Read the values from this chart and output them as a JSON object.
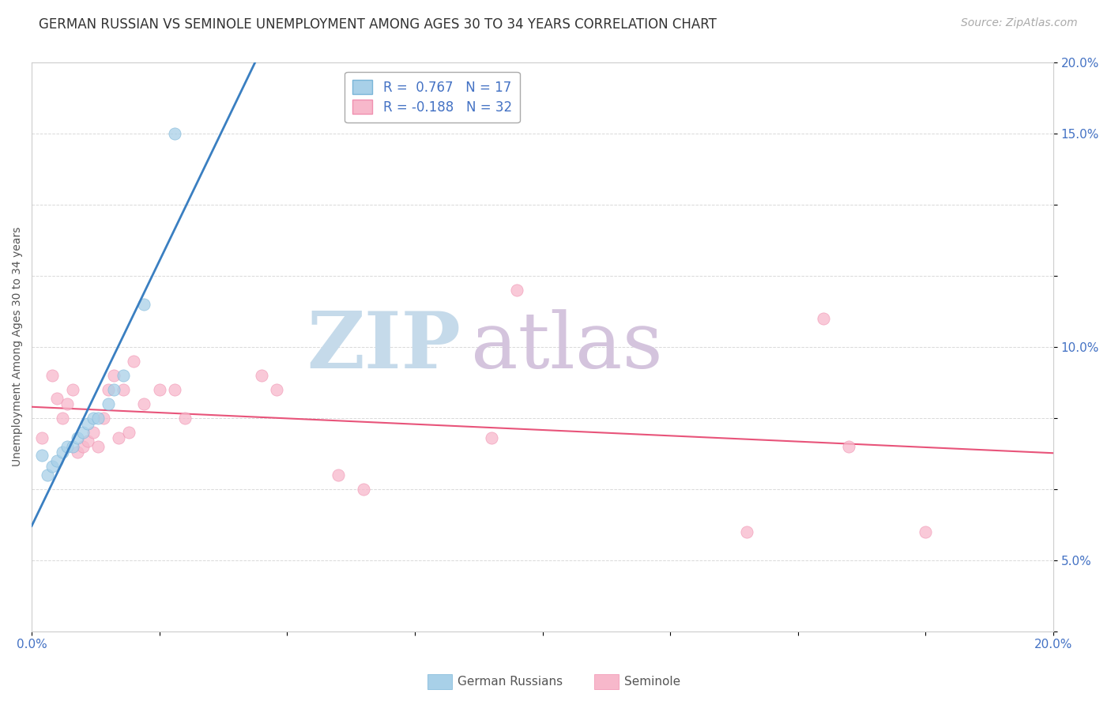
{
  "title": "GERMAN RUSSIAN VS SEMINOLE UNEMPLOYMENT AMONG AGES 30 TO 34 YEARS CORRELATION CHART",
  "source": "Source: ZipAtlas.com",
  "ylabel": "Unemployment Among Ages 30 to 34 years",
  "xlim": [
    0.0,
    0.2
  ],
  "ylim": [
    0.0,
    0.2
  ],
  "xticks": [
    0.0,
    0.025,
    0.05,
    0.075,
    0.1,
    0.125,
    0.15,
    0.175,
    0.2
  ],
  "yticks": [
    0.0,
    0.025,
    0.05,
    0.075,
    0.1,
    0.125,
    0.15,
    0.175,
    0.2
  ],
  "xtick_labels_show": [
    "0.0%",
    "20.0%"
  ],
  "ytick_labels_show": [
    "5.0%",
    "10.0%",
    "15.0%",
    "20.0%"
  ],
  "german_russian_x": [
    0.002,
    0.003,
    0.004,
    0.005,
    0.006,
    0.007,
    0.008,
    0.009,
    0.01,
    0.011,
    0.012,
    0.013,
    0.015,
    0.016,
    0.018,
    0.022,
    0.028
  ],
  "german_russian_y": [
    0.062,
    0.055,
    0.058,
    0.06,
    0.063,
    0.065,
    0.065,
    0.068,
    0.07,
    0.073,
    0.075,
    0.075,
    0.08,
    0.085,
    0.09,
    0.115,
    0.175
  ],
  "seminole_x": [
    0.002,
    0.004,
    0.005,
    0.006,
    0.007,
    0.008,
    0.009,
    0.01,
    0.011,
    0.012,
    0.013,
    0.014,
    0.015,
    0.016,
    0.017,
    0.018,
    0.019,
    0.02,
    0.022,
    0.025,
    0.028,
    0.03,
    0.045,
    0.048,
    0.06,
    0.065,
    0.09,
    0.095,
    0.14,
    0.155,
    0.16,
    0.175
  ],
  "seminole_y": [
    0.068,
    0.09,
    0.082,
    0.075,
    0.08,
    0.085,
    0.063,
    0.065,
    0.067,
    0.07,
    0.065,
    0.075,
    0.085,
    0.09,
    0.068,
    0.085,
    0.07,
    0.095,
    0.08,
    0.085,
    0.085,
    0.075,
    0.09,
    0.085,
    0.055,
    0.05,
    0.068,
    0.12,
    0.035,
    0.11,
    0.065,
    0.035
  ],
  "gr_R": 0.767,
  "gr_N": 17,
  "sem_R": -0.188,
  "sem_N": 32,
  "gr_color": "#a8d0e8",
  "gr_edge_color": "#7ab5d8",
  "sem_color": "#f7b8cb",
  "sem_edge_color": "#f090b0",
  "gr_line_color": "#3a7fc1",
  "sem_line_color": "#e8547a",
  "watermark_zip": "ZIP",
  "watermark_atlas": "atlas",
  "watermark_color": "#c8dff0",
  "watermark_color2": "#d8c8e0",
  "background_color": "#ffffff",
  "title_fontsize": 12,
  "axis_label_fontsize": 10,
  "tick_fontsize": 11,
  "legend_fontsize": 12,
  "source_fontsize": 10,
  "legend_text_color": "#4472c4"
}
